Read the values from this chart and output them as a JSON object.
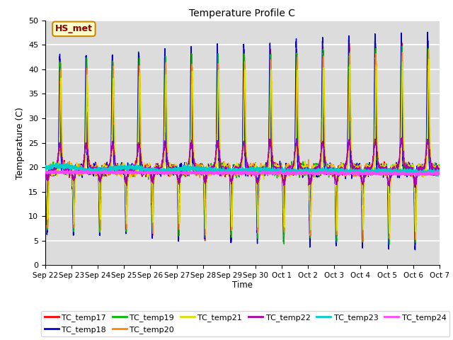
{
  "title": "Temperature Profile C",
  "xlabel": "Time",
  "ylabel": "Temperature (C)",
  "ylim": [
    0,
    50
  ],
  "bg_color": "#dcdcdc",
  "grid_color": "white",
  "annotation_text": "HS_met",
  "annotation_bg": "#ffffcc",
  "annotation_border": "#cc8800",
  "annotation_text_color": "#880000",
  "series_colors": {
    "TC_temp17": "#ff0000",
    "TC_temp18": "#0000cc",
    "TC_temp19": "#00bb00",
    "TC_temp20": "#ff8800",
    "TC_temp21": "#dddd00",
    "TC_temp22": "#aa00aa",
    "TC_temp23": "#00cccc",
    "TC_temp24": "#ff44ff"
  },
  "x_tick_labels": [
    "Sep 22",
    "Sep 23",
    "Sep 24",
    "Sep 25",
    "Sep 26",
    "Sep 27",
    "Sep 28",
    "Sep 29",
    "Sep 30",
    "Oct 1",
    "Oct 2",
    "Oct 3",
    "Oct 4",
    "Oct 5",
    "Oct 6",
    "Oct 7"
  ],
  "x_tick_positions": [
    0,
    1,
    2,
    3,
    4,
    5,
    6,
    7,
    8,
    9,
    10,
    11,
    12,
    13,
    14,
    15
  ]
}
